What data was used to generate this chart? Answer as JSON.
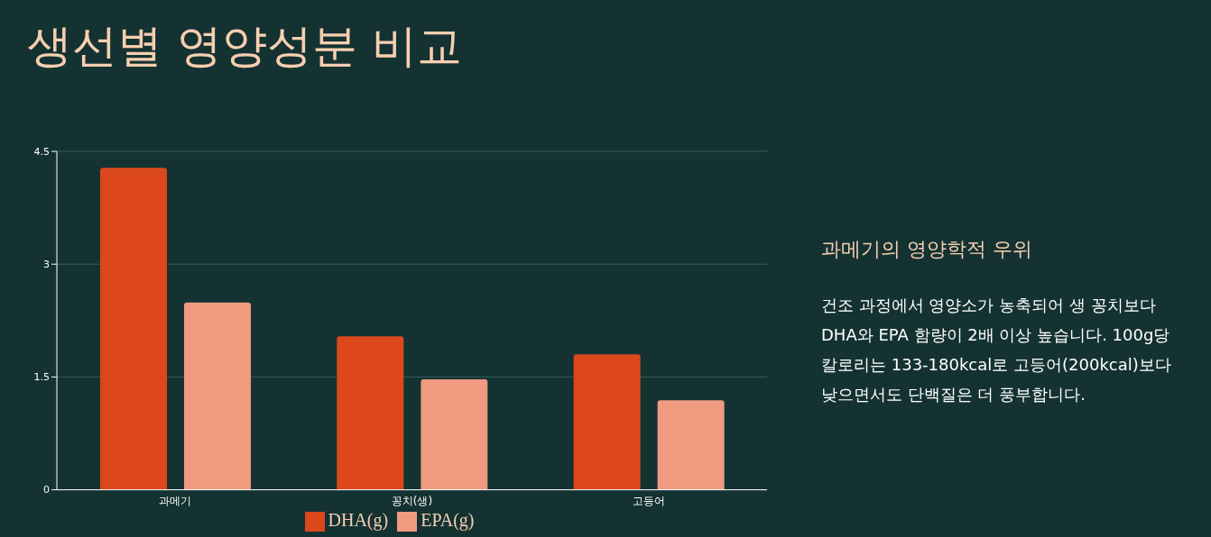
{
  "chart_data": {
    "type": "bar",
    "title": "생선별 영양성분 비교",
    "categories": [
      "과메기",
      "꽁치(생)",
      "고등어"
    ],
    "series": [
      {
        "name": "DHA(g)",
        "color": "#dc471c",
        "values": [
          4.28,
          2.04,
          1.8
        ]
      },
      {
        "name": "EPA(g)",
        "color": "#f09a80",
        "values": [
          2.49,
          1.47,
          1.19
        ]
      }
    ],
    "ylim": [
      0,
      4.5
    ],
    "yticks": [
      0,
      1.5,
      3,
      4.5
    ],
    "grid": "y",
    "legend": "bottom",
    "annotations": [
      "과메기의 영양학적 우위",
      "건조 과정에서 영양소가 농축되어 생 꽁치보다 DHA와 EPA 함량이 2배 이상 높습니다. 100g당 칼로리는 133-180kcal로 고등어(200kcal)보다 낮으면서도 단백질은 더 풍부합니다."
    ]
  }
}
